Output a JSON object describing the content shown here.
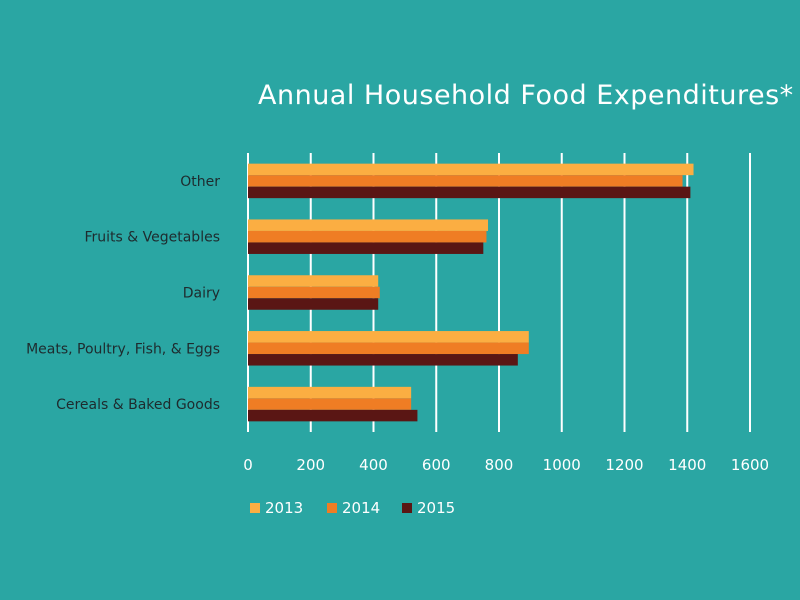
{
  "chart_data": {
    "type": "bar",
    "orientation": "horizontal",
    "title": "Annual Household Food Expenditures*",
    "xlabel": "",
    "ylabel": "",
    "xlim": [
      0,
      1600
    ],
    "x_ticks": [
      0,
      200,
      400,
      600,
      800,
      1000,
      1200,
      1400,
      1600
    ],
    "categories": [
      "Other",
      "Fruits & Vegetables",
      "Dairy",
      "Meats, Poultry, Fish, & Eggs",
      "Cereals & Baked Goods"
    ],
    "series": [
      {
        "name": "2013",
        "color": "#fbae42",
        "values": [
          1420,
          765,
          415,
          895,
          520
        ]
      },
      {
        "name": "2014",
        "color": "#ef7d24",
        "values": [
          1385,
          760,
          420,
          895,
          520
        ]
      },
      {
        "name": "2015",
        "color": "#5a1614",
        "values": [
          1410,
          750,
          415,
          860,
          540
        ]
      }
    ],
    "gridlines": true,
    "gridline_color": "#ffffff",
    "legend_position": "bottom-left"
  }
}
